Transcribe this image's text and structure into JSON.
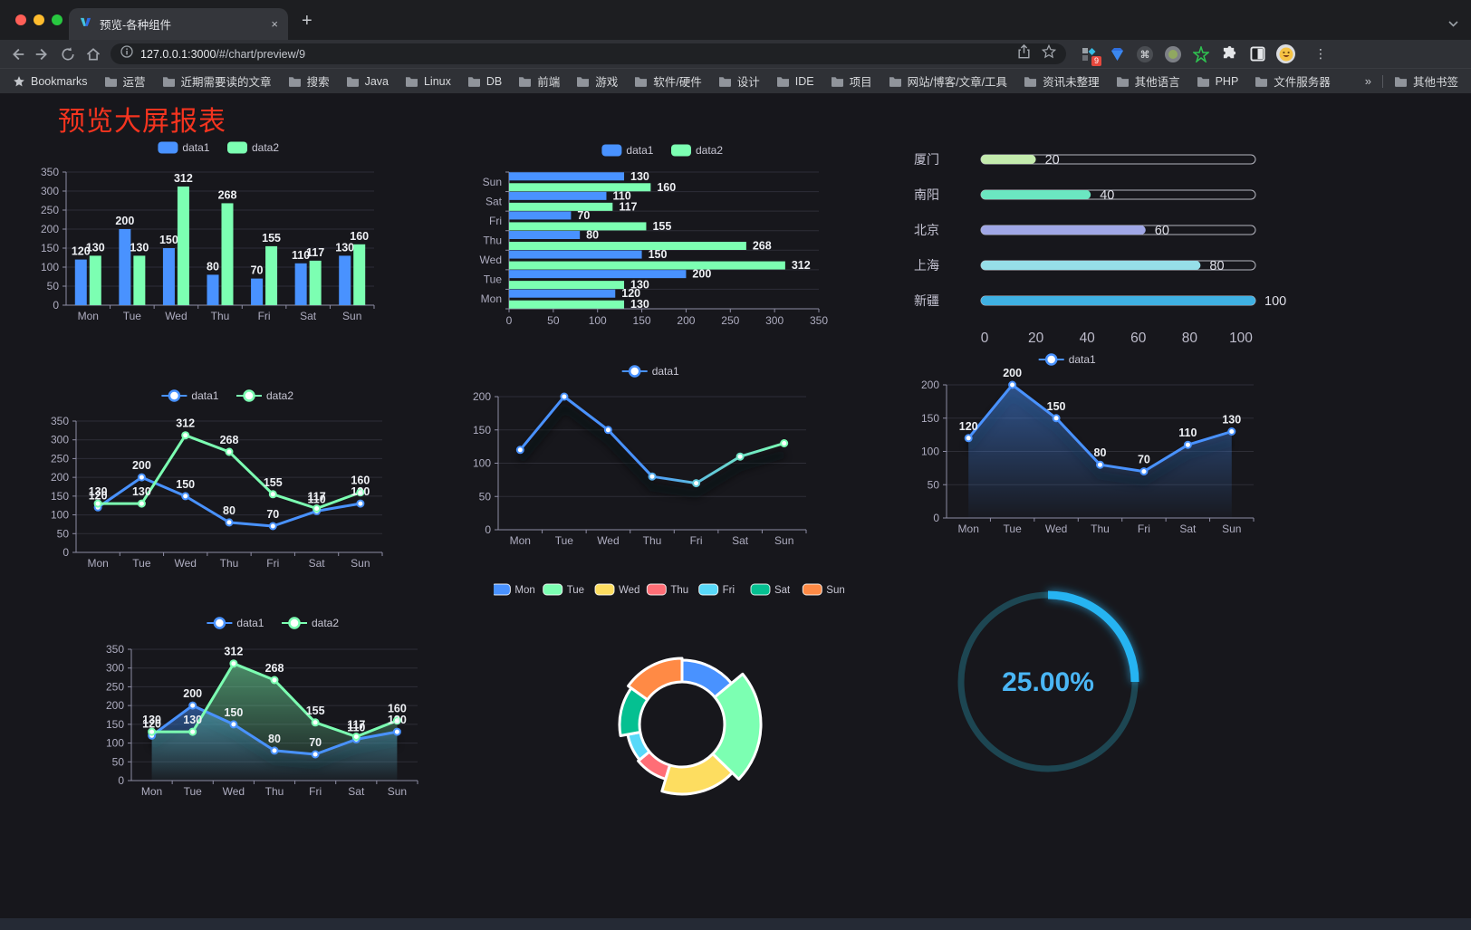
{
  "browser": {
    "tab": {
      "title": "预览-各种组件",
      "close_glyph": "×"
    },
    "new_tab_glyph": "+",
    "url_bar": {
      "host": "127.0.0.1:3000",
      "path": "/#/chart/preview/9"
    },
    "actions": {
      "extensions_badge": "9"
    },
    "menu_glyph": "⋮",
    "bookmarks_bar": {
      "bookmarks_label": "Bookmarks",
      "folders": [
        "运营",
        "近期需要读的文章",
        "搜索",
        "Java",
        "Linux",
        "DB",
        "前端",
        "游戏",
        "软件/硬件",
        "设计",
        "IDE",
        "项目",
        "网站/博客/文章/工具",
        "资讯未整理",
        "其他语言",
        "PHP",
        "文件服务器"
      ],
      "overflow_chevron": "»",
      "other_bookmarks_label": "其他书签"
    }
  },
  "page": {
    "title": "预览大屏报表",
    "title_color": "#f5341f",
    "background": "#17171c"
  },
  "palette": {
    "blue": "#4992ff",
    "green": "#7cffb2",
    "yellow": "#fddd60",
    "red": "#ff6e76",
    "cyan": "#58d9f9",
    "teal": "#05c091",
    "orange": "#ff8a45"
  },
  "chart_data": [
    {
      "id": "c1",
      "type": "bar",
      "categories": [
        "Mon",
        "Tue",
        "Wed",
        "Thu",
        "Fri",
        "Sat",
        "Sun"
      ],
      "series": [
        {
          "name": "data1",
          "color": "#4992ff",
          "values": [
            120,
            200,
            150,
            80,
            70,
            110,
            130
          ]
        },
        {
          "name": "data2",
          "color": "#7cffb2",
          "values": [
            130,
            130,
            312,
            268,
            155,
            117,
            160
          ]
        }
      ],
      "ylim": [
        0,
        350
      ],
      "ytick_step": 50,
      "grid": true,
      "legend_position": "top"
    },
    {
      "id": "c2",
      "type": "bar-horizontal",
      "categories_top_to_bottom": [
        "Sun",
        "Sat",
        "Fri",
        "Thu",
        "Wed",
        "Tue",
        "Mon"
      ],
      "series": [
        {
          "name": "data1",
          "color": "#4992ff",
          "values": [
            120,
            200,
            150,
            80,
            70,
            110,
            130
          ]
        },
        {
          "name": "data2",
          "color": "#7cffb2",
          "values": [
            130,
            130,
            312,
            268,
            155,
            117,
            160
          ]
        }
      ],
      "xlim": [
        0,
        350
      ],
      "xtick_step": 50,
      "legend_position": "top"
    },
    {
      "id": "c3",
      "type": "progress-list",
      "items": [
        {
          "label": "厦门",
          "value": 20,
          "color": "#c4ebad"
        },
        {
          "label": "南阳",
          "value": 40,
          "color": "#6be6c1"
        },
        {
          "label": "北京",
          "value": 60,
          "color": "#a0a7e6"
        },
        {
          "label": "上海",
          "value": 80,
          "color": "#96dee8"
        },
        {
          "label": "新疆",
          "value": 100,
          "color": "#3fb1e3"
        }
      ],
      "max": 100,
      "axis_ticks": [
        0,
        20,
        40,
        60,
        80,
        100
      ]
    },
    {
      "id": "c4",
      "type": "line",
      "categories": [
        "Mon",
        "Tue",
        "Wed",
        "Thu",
        "Fri",
        "Sat",
        "Sun"
      ],
      "series": [
        {
          "name": "data1",
          "color": "#4992ff",
          "values": [
            120,
            200,
            150,
            80,
            70,
            110,
            130
          ]
        },
        {
          "name": "data2",
          "color": "#7cffb2",
          "values": [
            130,
            130,
            312,
            268,
            155,
            117,
            160
          ]
        }
      ],
      "ylim": [
        0,
        350
      ],
      "ytick_step": 50,
      "show_labels": true,
      "legend_position": "top"
    },
    {
      "id": "c5",
      "type": "line",
      "categories": [
        "Mon",
        "Tue",
        "Wed",
        "Thu",
        "Fri",
        "Sat",
        "Sun"
      ],
      "series": [
        {
          "name": "data1",
          "color": "#4992ff",
          "line_gradient": [
            "#4992ff",
            "#7cffb2"
          ],
          "values": [
            120,
            200,
            150,
            80,
            70,
            110,
            130
          ]
        }
      ],
      "ylim": [
        0,
        200
      ],
      "ytick_step": 50,
      "show_labels": false,
      "shadow": true,
      "legend_position": "top"
    },
    {
      "id": "c6",
      "type": "area",
      "categories": [
        "Mon",
        "Tue",
        "Wed",
        "Thu",
        "Fri",
        "Sat",
        "Sun"
      ],
      "series": [
        {
          "name": "data1",
          "color": "#4992ff",
          "area": true,
          "values": [
            120,
            200,
            150,
            80,
            70,
            110,
            130
          ]
        }
      ],
      "ylim": [
        0,
        200
      ],
      "ytick_step": 50,
      "show_labels": true,
      "shadow": true,
      "legend_position": "top"
    },
    {
      "id": "c7",
      "type": "area",
      "categories": [
        "Mon",
        "Tue",
        "Wed",
        "Thu",
        "Fri",
        "Sat",
        "Sun"
      ],
      "series": [
        {
          "name": "data1",
          "color": "#4992ff",
          "area": true,
          "values": [
            120,
            200,
            150,
            80,
            70,
            110,
            130
          ]
        },
        {
          "name": "data2",
          "color": "#7cffb2",
          "area": true,
          "values": [
            130,
            130,
            312,
            268,
            155,
            117,
            160
          ]
        }
      ],
      "ylim": [
        0,
        350
      ],
      "ytick_step": 50,
      "show_labels": true,
      "shadow": true,
      "legend_position": "top"
    },
    {
      "id": "c8",
      "type": "pie",
      "rose": true,
      "donut": true,
      "categories": [
        "Mon",
        "Tue",
        "Wed",
        "Thu",
        "Fri",
        "Sat",
        "Sun"
      ],
      "values": [
        120,
        200,
        150,
        80,
        70,
        110,
        130
      ],
      "colors": [
        "#4992ff",
        "#7cffb2",
        "#fddd60",
        "#ff6e76",
        "#58d9f9",
        "#05c091",
        "#ff8a45"
      ],
      "border_color": "#ffffff",
      "legend_position": "top"
    },
    {
      "id": "c9",
      "type": "ring",
      "value_percent": 25,
      "label": "25.00%",
      "arc_color": "#28b4f2",
      "track_color": "#1d4652",
      "text_color": "#4ab6f5"
    }
  ]
}
